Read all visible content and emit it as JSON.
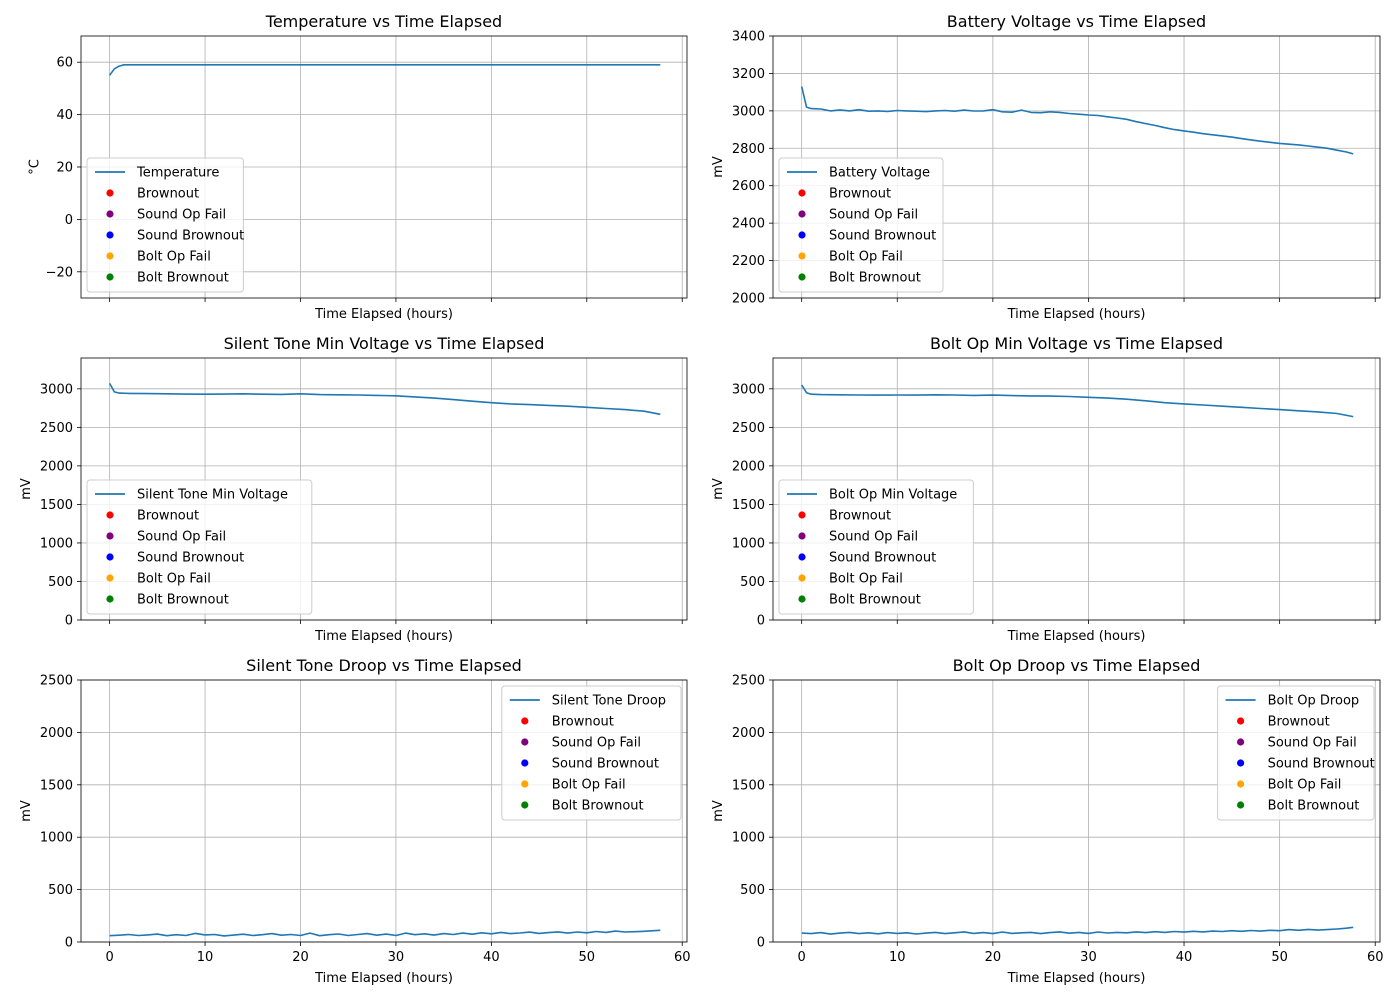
{
  "chart_data": [
    {
      "type": "line",
      "title": "Temperature vs Time Elapsed",
      "xlabel": "Time Elapsed (hours)",
      "ylabel": "°C",
      "xlim": [
        -3,
        60.5
      ],
      "ylim": [
        -30,
        70
      ],
      "xticks": [
        0,
        10,
        20,
        30,
        40,
        50,
        60
      ],
      "yticks": [
        -20,
        0,
        20,
        40,
        60
      ],
      "ytick_labels": [
        "−20",
        "0",
        "20",
        "40",
        "60"
      ],
      "show_xtick_labels": false,
      "grid": true,
      "legend_position": "lower-left",
      "series": [
        {
          "name": "Temperature",
          "color": "#1f77b4",
          "x": [
            0,
            0.5,
            1,
            1.5,
            2,
            3,
            5,
            10,
            15,
            20,
            25,
            30,
            35,
            40,
            45,
            50,
            55,
            57.7
          ],
          "y": [
            55,
            57.5,
            58.5,
            59,
            59,
            59,
            59,
            59,
            59,
            59,
            59,
            59,
            59,
            59,
            59,
            59,
            59,
            59
          ]
        }
      ],
      "event_markers": [
        {
          "name": "Brownout",
          "color": "#ff0000"
        },
        {
          "name": "Sound Op Fail",
          "color": "#800080"
        },
        {
          "name": "Sound Brownout",
          "color": "#0000ff"
        },
        {
          "name": "Bolt Op Fail",
          "color": "#ffa500"
        },
        {
          "name": "Bolt Brownout",
          "color": "#008000"
        }
      ]
    },
    {
      "type": "line",
      "title": "Battery Voltage vs Time Elapsed",
      "xlabel": "Time Elapsed (hours)",
      "ylabel": "mV",
      "xlim": [
        -3,
        60.5
      ],
      "ylim": [
        2000,
        3400
      ],
      "xticks": [
        0,
        10,
        20,
        30,
        40,
        50,
        60
      ],
      "yticks": [
        2000,
        2200,
        2400,
        2600,
        2800,
        3000,
        3200,
        3400
      ],
      "show_xtick_labels": false,
      "grid": true,
      "legend_position": "lower-left",
      "series": [
        {
          "name": "Battery Voltage",
          "color": "#1f77b4",
          "x": [
            0,
            0.5,
            1,
            2,
            3,
            4,
            5,
            6,
            7,
            8,
            9,
            10,
            11,
            12,
            13,
            14,
            15,
            16,
            17,
            18,
            19,
            20,
            21,
            22,
            23,
            24,
            25,
            26,
            27,
            28,
            29,
            30,
            31,
            32,
            33,
            34,
            35,
            36,
            37,
            38,
            39,
            40,
            41,
            42,
            43,
            44,
            45,
            46,
            47,
            48,
            49,
            50,
            51,
            52,
            53,
            54,
            55,
            56,
            57,
            57.7
          ],
          "y": [
            3130,
            3020,
            3012,
            3010,
            3000,
            3005,
            3000,
            3006,
            2998,
            3000,
            2997,
            3002,
            3000,
            2998,
            2996,
            3000,
            3002,
            2998,
            3004,
            2999,
            3000,
            3006,
            2995,
            2993,
            3004,
            2992,
            2990,
            2995,
            2992,
            2986,
            2982,
            2978,
            2975,
            2968,
            2962,
            2955,
            2942,
            2932,
            2922,
            2910,
            2900,
            2893,
            2886,
            2878,
            2872,
            2866,
            2860,
            2852,
            2845,
            2838,
            2832,
            2826,
            2822,
            2818,
            2812,
            2806,
            2800,
            2790,
            2780,
            2770
          ]
        }
      ],
      "event_markers": [
        {
          "name": "Brownout",
          "color": "#ff0000"
        },
        {
          "name": "Sound Op Fail",
          "color": "#800080"
        },
        {
          "name": "Sound Brownout",
          "color": "#0000ff"
        },
        {
          "name": "Bolt Op Fail",
          "color": "#ffa500"
        },
        {
          "name": "Bolt Brownout",
          "color": "#008000"
        }
      ]
    },
    {
      "type": "line",
      "title": "Silent Tone Min Voltage vs Time Elapsed",
      "xlabel": "Time Elapsed (hours)",
      "ylabel": "mV",
      "xlim": [
        -3,
        60.5
      ],
      "ylim": [
        0,
        3400
      ],
      "xticks": [
        0,
        10,
        20,
        30,
        40,
        50,
        60
      ],
      "yticks": [
        0,
        500,
        1000,
        1500,
        2000,
        2500,
        3000
      ],
      "show_xtick_labels": false,
      "grid": true,
      "legend_position": "lower-left",
      "series": [
        {
          "name": "Silent Tone Min Voltage",
          "color": "#1f77b4",
          "x": [
            0,
            0.5,
            1,
            2,
            4,
            6,
            8,
            10,
            12,
            14,
            16,
            18,
            20,
            22,
            24,
            26,
            28,
            30,
            32,
            34,
            36,
            38,
            40,
            42,
            44,
            46,
            48,
            50,
            52,
            54,
            56,
            57.7
          ],
          "y": [
            3070,
            2960,
            2945,
            2940,
            2938,
            2935,
            2932,
            2930,
            2932,
            2935,
            2930,
            2928,
            2935,
            2925,
            2922,
            2920,
            2915,
            2910,
            2895,
            2880,
            2860,
            2840,
            2820,
            2805,
            2795,
            2785,
            2775,
            2760,
            2745,
            2730,
            2710,
            2670
          ]
        }
      ],
      "event_markers": [
        {
          "name": "Brownout",
          "color": "#ff0000"
        },
        {
          "name": "Sound Op Fail",
          "color": "#800080"
        },
        {
          "name": "Sound Brownout",
          "color": "#0000ff"
        },
        {
          "name": "Bolt Op Fail",
          "color": "#ffa500"
        },
        {
          "name": "Bolt Brownout",
          "color": "#008000"
        }
      ]
    },
    {
      "type": "line",
      "title": "Bolt Op Min Voltage vs Time Elapsed",
      "xlabel": "Time Elapsed (hours)",
      "ylabel": "mV",
      "xlim": [
        -3,
        60.5
      ],
      "ylim": [
        0,
        3400
      ],
      "xticks": [
        0,
        10,
        20,
        30,
        40,
        50,
        60
      ],
      "yticks": [
        0,
        500,
        1000,
        1500,
        2000,
        2500,
        3000
      ],
      "show_xtick_labels": false,
      "grid": true,
      "legend_position": "lower-left",
      "series": [
        {
          "name": "Bolt Op Min Voltage",
          "color": "#1f77b4",
          "x": [
            0,
            0.5,
            1,
            2,
            4,
            6,
            8,
            10,
            12,
            14,
            16,
            18,
            20,
            22,
            24,
            26,
            28,
            30,
            32,
            34,
            36,
            38,
            40,
            42,
            44,
            46,
            48,
            50,
            52,
            54,
            56,
            57.7
          ],
          "y": [
            3050,
            2950,
            2930,
            2925,
            2922,
            2920,
            2918,
            2920,
            2918,
            2922,
            2920,
            2915,
            2918,
            2912,
            2908,
            2905,
            2900,
            2890,
            2880,
            2865,
            2845,
            2820,
            2805,
            2790,
            2775,
            2760,
            2745,
            2730,
            2715,
            2700,
            2680,
            2640
          ]
        }
      ],
      "event_markers": [
        {
          "name": "Brownout",
          "color": "#ff0000"
        },
        {
          "name": "Sound Op Fail",
          "color": "#800080"
        },
        {
          "name": "Sound Brownout",
          "color": "#0000ff"
        },
        {
          "name": "Bolt Op Fail",
          "color": "#ffa500"
        },
        {
          "name": "Bolt Brownout",
          "color": "#008000"
        }
      ]
    },
    {
      "type": "line",
      "title": "Silent Tone Droop vs Time Elapsed",
      "xlabel": "Time Elapsed (hours)",
      "ylabel": "mV",
      "xlim": [
        -3,
        60.5
      ],
      "ylim": [
        0,
        2500
      ],
      "xticks": [
        0,
        10,
        20,
        30,
        40,
        50,
        60
      ],
      "yticks": [
        0,
        500,
        1000,
        1500,
        2000,
        2500
      ],
      "show_xtick_labels": true,
      "grid": true,
      "legend_position": "upper-right",
      "series": [
        {
          "name": "Silent Tone Droop",
          "color": "#1f77b4",
          "x": [
            0,
            1,
            2,
            3,
            4,
            5,
            6,
            7,
            8,
            9,
            10,
            11,
            12,
            13,
            14,
            15,
            16,
            17,
            18,
            19,
            20,
            21,
            22,
            23,
            24,
            25,
            26,
            27,
            28,
            29,
            30,
            31,
            32,
            33,
            34,
            35,
            36,
            37,
            38,
            39,
            40,
            41,
            42,
            43,
            44,
            45,
            46,
            47,
            48,
            49,
            50,
            51,
            52,
            53,
            54,
            55,
            56,
            57,
            57.7
          ],
          "y": [
            60,
            65,
            72,
            62,
            68,
            75,
            60,
            70,
            62,
            82,
            68,
            72,
            58,
            66,
            74,
            62,
            70,
            80,
            65,
            72,
            62,
            85,
            60,
            70,
            76,
            62,
            72,
            80,
            65,
            75,
            62,
            85,
            70,
            78,
            66,
            80,
            72,
            85,
            74,
            88,
            78,
            92,
            80,
            86,
            94,
            82,
            90,
            96,
            85,
            95,
            88,
            100,
            92,
            104,
            95,
            98,
            102,
            108,
            112
          ]
        }
      ],
      "event_markers": [
        {
          "name": "Brownout",
          "color": "#ff0000"
        },
        {
          "name": "Sound Op Fail",
          "color": "#800080"
        },
        {
          "name": "Sound Brownout",
          "color": "#0000ff"
        },
        {
          "name": "Bolt Op Fail",
          "color": "#ffa500"
        },
        {
          "name": "Bolt Brownout",
          "color": "#008000"
        }
      ]
    },
    {
      "type": "line",
      "title": "Bolt Op Droop vs Time Elapsed",
      "xlabel": "Time Elapsed (hours)",
      "ylabel": "mV",
      "xlim": [
        -3,
        60.5
      ],
      "ylim": [
        0,
        2500
      ],
      "xticks": [
        0,
        10,
        20,
        30,
        40,
        50,
        60
      ],
      "yticks": [
        0,
        500,
        1000,
        1500,
        2000,
        2500
      ],
      "show_xtick_labels": true,
      "grid": true,
      "legend_position": "upper-right",
      "series": [
        {
          "name": "Bolt Op Droop",
          "color": "#1f77b4",
          "x": [
            0,
            1,
            2,
            3,
            4,
            5,
            6,
            7,
            8,
            9,
            10,
            11,
            12,
            13,
            14,
            15,
            16,
            17,
            18,
            19,
            20,
            21,
            22,
            23,
            24,
            25,
            26,
            27,
            28,
            29,
            30,
            31,
            32,
            33,
            34,
            35,
            36,
            37,
            38,
            39,
            40,
            41,
            42,
            43,
            44,
            45,
            46,
            47,
            48,
            49,
            50,
            51,
            52,
            53,
            54,
            55,
            56,
            57,
            57.7
          ],
          "y": [
            85,
            80,
            90,
            75,
            85,
            92,
            80,
            88,
            78,
            90,
            82,
            88,
            76,
            85,
            92,
            80,
            88,
            96,
            82,
            90,
            80,
            95,
            82,
            88,
            92,
            80,
            90,
            96,
            84,
            92,
            82,
            95,
            86,
            92,
            88,
            96,
            90,
            98,
            92,
            100,
            94,
            102,
            96,
            104,
            100,
            108,
            102,
            110,
            104,
            112,
            108,
            118,
            112,
            120,
            114,
            118,
            124,
            132,
            140
          ]
        }
      ],
      "event_markers": [
        {
          "name": "Brownout",
          "color": "#ff0000"
        },
        {
          "name": "Sound Op Fail",
          "color": "#800080"
        },
        {
          "name": "Sound Brownout",
          "color": "#0000ff"
        },
        {
          "name": "Bolt Op Fail",
          "color": "#ffa500"
        },
        {
          "name": "Bolt Brownout",
          "color": "#008000"
        }
      ]
    }
  ]
}
